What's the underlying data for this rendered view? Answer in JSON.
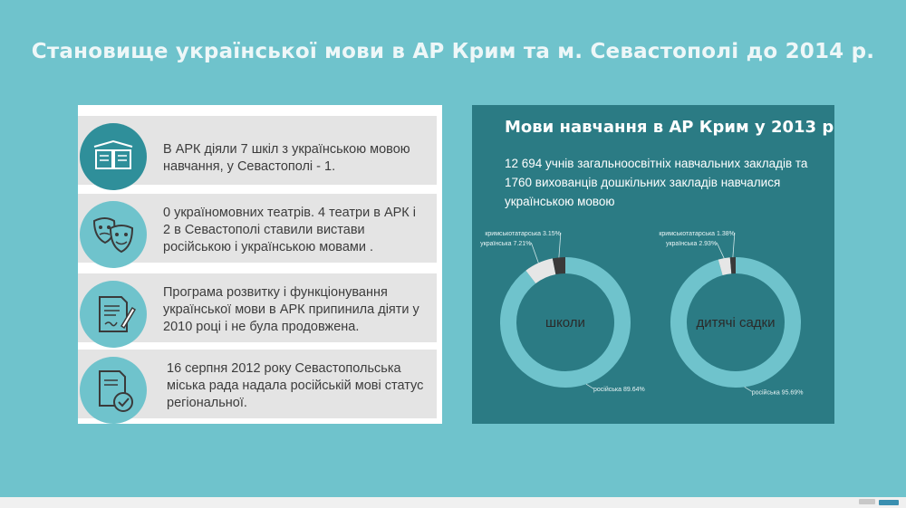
{
  "title": "Становище української мови в АР Крим та м. Севастополі до 2014 р.",
  "info_items": [
    {
      "icon": "open-book-icon",
      "text": "В АРК діяли 7 шкіл з українською мовою навчання, у Севастополі - 1."
    },
    {
      "icon": "theater-masks-icon",
      "text": "0 україномовних театрів. 4 театри в АРК і 2 в Севастополі ставили вистави російською і українською мовами ."
    },
    {
      "icon": "document-pen-icon",
      "text": "Програма розвитку і функціонування української мови в АРК припинила діяти у 2010 році і не була продовжена."
    },
    {
      "icon": "document-check-icon",
      "text": "16 серпня 2012 року Севастопольська міська рада надала російській мові статус регіональної."
    }
  ],
  "panel": {
    "title": "Мови навчання в АР Крим у 2013 р",
    "description": "12 694 учнів загальноосвітніх навчальних закладів та 1760 вихованців дошкільних закладів навчалися українською мовою"
  },
  "colors": {
    "background": "#6fc3cc",
    "panel": "#2b7b84",
    "russian": "#6fc3cc",
    "ukrainian": "#e6e6e6",
    "crimean_tatar": "#3a3a3a",
    "icon_dark": "#2f8f9a",
    "icon_light": "#6fc3cc"
  },
  "chart_data": [
    {
      "type": "pie",
      "title": "школи",
      "series": [
        {
          "name": "російська",
          "value": 89.64,
          "label": "російська 89.64%"
        },
        {
          "name": "українська",
          "value": 7.21,
          "label": "українська 7.21%"
        },
        {
          "name": "кримськотатарська",
          "value": 3.15,
          "label": "кримськотатарська 3.15%"
        }
      ]
    },
    {
      "type": "pie",
      "title": "дитячі садки",
      "series": [
        {
          "name": "російська",
          "value": 95.69,
          "label": "російська 95.69%"
        },
        {
          "name": "українська",
          "value": 2.93,
          "label": "українська 2.93%"
        },
        {
          "name": "кримськотатарська",
          "value": 1.38,
          "label": "кримськотатарська 1.38%"
        }
      ]
    }
  ]
}
